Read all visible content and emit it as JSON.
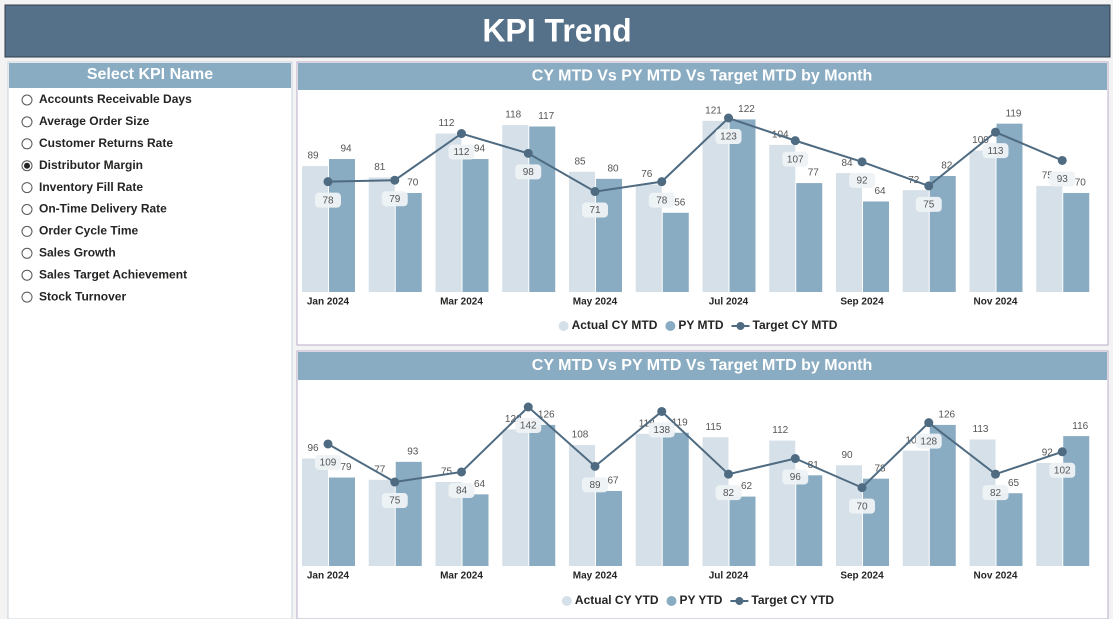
{
  "header": {
    "title": "KPI Trend"
  },
  "slicer": {
    "title": "Select KPI Name",
    "options": [
      "Accounts Receivable Days",
      "Average Order Size",
      "Customer Returns Rate",
      "Distributor Margin",
      "Inventory Fill Rate",
      "On-Time Delivery Rate",
      "Order Cycle Time",
      "Sales Growth",
      "Sales Target Achievement",
      "Stock Turnover"
    ],
    "selected": 3
  },
  "chart_data": [
    {
      "type": "combo",
      "title": "CY MTD Vs PY MTD Vs Target MTD by Month",
      "categories": [
        "Jan 2024",
        null,
        "Mar 2024",
        null,
        "May 2024",
        null,
        "Jul 2024",
        null,
        "Sep 2024",
        null,
        "Nov 2024",
        null
      ],
      "series": [
        {
          "name": "Actual CY MTD",
          "type": "bar",
          "color": "#d6e0e8",
          "values": [
            89,
            81,
            112,
            118,
            85,
            76,
            121,
            104,
            84,
            72,
            100,
            75
          ]
        },
        {
          "name": "PY MTD",
          "type": "bar",
          "color": "#8aacc2",
          "values": [
            94,
            70,
            94,
            117,
            80,
            56,
            122,
            77,
            64,
            82,
            119,
            70
          ]
        },
        {
          "name": "Target CY MTD",
          "type": "line",
          "color": "#4e6b82",
          "values": [
            78,
            79,
            112,
            98,
            71,
            78,
            123,
            107,
            92,
            75,
            113,
            93
          ]
        }
      ]
    },
    {
      "type": "combo",
      "title": "CY MTD Vs PY MTD Vs Target MTD by Month",
      "categories": [
        "Jan 2024",
        null,
        "Mar 2024",
        null,
        "May 2024",
        null,
        "Jul 2024",
        null,
        "Sep 2024",
        null,
        "Nov 2024",
        null
      ],
      "series": [
        {
          "name": "Actual CY YTD",
          "type": "bar",
          "color": "#d6e0e8",
          "values": [
            96,
            77,
            75,
            122,
            108,
            118,
            115,
            112,
            90,
            103,
            113,
            92
          ]
        },
        {
          "name": "PY YTD",
          "type": "bar",
          "color": "#8aacc2",
          "values": [
            79,
            93,
            64,
            126,
            67,
            119,
            62,
            81,
            78,
            126,
            65,
            116
          ]
        },
        {
          "name": "Target CY YTD",
          "type": "line",
          "color": "#4e6b82",
          "values": [
            109,
            75,
            84,
            142,
            89,
            138,
            82,
            96,
            70,
            128,
            82,
            102
          ]
        }
      ]
    }
  ]
}
